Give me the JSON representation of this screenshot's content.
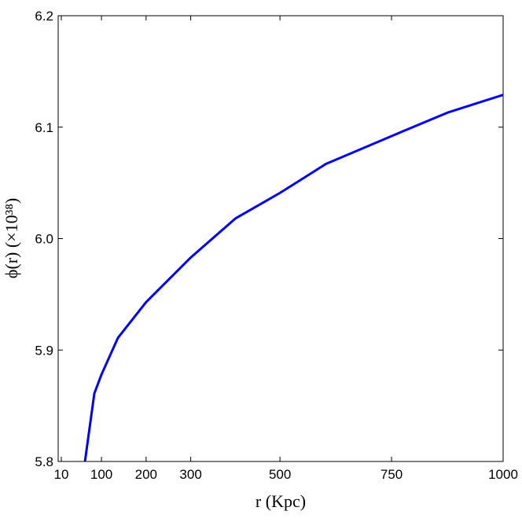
{
  "chart_data": {
    "type": "line",
    "xlabel": "r   (Kpc)",
    "ylabel": "ϕ(r)    (×10³⁸)",
    "x": [
      63,
      84,
      100,
      137,
      200,
      300,
      400,
      500,
      603,
      750,
      875,
      1000
    ],
    "values": [
      5.8,
      5.861,
      5.878,
      5.911,
      5.943,
      5.983,
      6.018,
      6.041,
      6.067,
      6.092,
      6.113,
      6.129
    ],
    "color": "#0000ff",
    "xlim": [
      3,
      1000
    ],
    "xticks": [
      10,
      100,
      200,
      300,
      500,
      750,
      1000
    ],
    "ylim": [
      5.8,
      6.2
    ],
    "yticks": [
      5.8,
      5.9,
      {
        "value": 6,
        "label": "6.0"
      },
      6.1,
      6.2
    ],
    "grid": false
  }
}
